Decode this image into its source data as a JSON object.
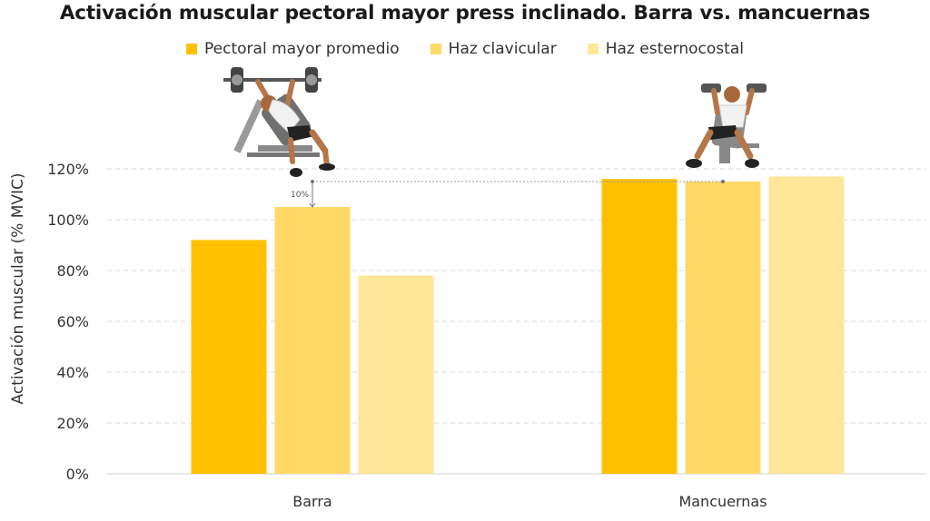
{
  "chart_data": {
    "type": "bar",
    "title": "Activación muscular pectoral mayor press inclinado. Barra vs. mancuernas",
    "ylabel": "Activación muscular (% MVIC)",
    "xlabel": "",
    "categories": [
      "Barra",
      "Mancuernas"
    ],
    "series": [
      {
        "name": "Pectoral mayor promedio",
        "color": "#FFC000",
        "values": [
          92,
          116
        ]
      },
      {
        "name": "Haz clavicular",
        "color": "#FFD966",
        "values": [
          105,
          115
        ]
      },
      {
        "name": "Haz esternocostal",
        "color": "#FFE699",
        "values": [
          78,
          117
        ]
      }
    ],
    "ylim": [
      0,
      120
    ],
    "yticks": [
      "0%",
      "20%",
      "40%",
      "60%",
      "80%",
      "100%",
      "120%"
    ],
    "grid": true,
    "legend_position": "top",
    "annotation": {
      "label": "10%",
      "from_value": 105,
      "to_value": 115
    }
  }
}
